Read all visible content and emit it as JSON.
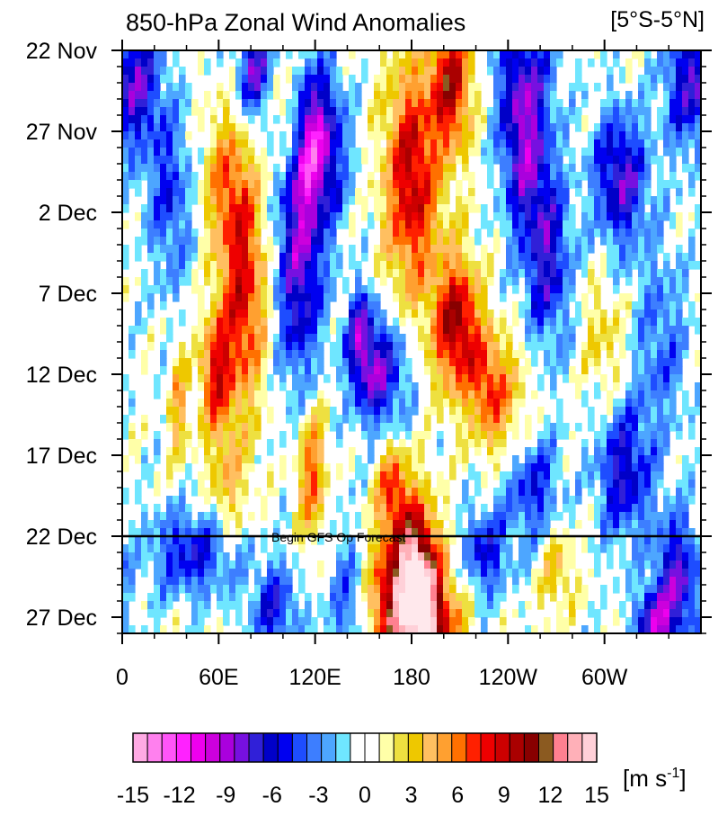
{
  "chart_data": {
    "type": "heatmap",
    "title": "850-hPa Zonal Wind Anomalies",
    "subtitle_region": "[5°S-5°N]",
    "x_ticks": [
      {
        "lon": 0,
        "label": "0"
      },
      {
        "lon": 60,
        "label": "60E"
      },
      {
        "lon": 120,
        "label": "120E"
      },
      {
        "lon": 180,
        "label": "180"
      },
      {
        "lon": 240,
        "label": "120W"
      },
      {
        "lon": 300,
        "label": "60W"
      }
    ],
    "xlim": [
      0,
      360
    ],
    "y_ticks": [
      {
        "day": 0,
        "label": "22 Nov"
      },
      {
        "day": 5,
        "label": "27 Nov"
      },
      {
        "day": 10,
        "label": "2 Dec"
      },
      {
        "day": 15,
        "label": "7 Dec"
      },
      {
        "day": 20,
        "label": "12 Dec"
      },
      {
        "day": 25,
        "label": "17 Dec"
      },
      {
        "day": 30,
        "label": "22 Dec"
      },
      {
        "day": 35,
        "label": "27 Dec"
      }
    ],
    "ylim_days": [
      0,
      36
    ],
    "forecast_line": {
      "day": 30,
      "label": "Begin GFS Op Forecast"
    },
    "colorbar": {
      "units": "[m s",
      "units_exp": "-1",
      "units_close": "]",
      "levels": [
        -16,
        -15,
        -14,
        -13,
        -12,
        -11,
        -10,
        -9,
        -8,
        -7,
        -6,
        -5,
        -4,
        -3,
        -2,
        -1,
        0,
        1,
        2,
        3,
        4,
        5,
        6,
        7,
        8,
        9,
        10,
        11,
        12,
        13,
        14,
        15,
        16
      ],
      "colors": [
        "#ffb6dd",
        "#ffaae4",
        "#ff80ee",
        "#ff55f8",
        "#ff22ff",
        "#ee00ee",
        "#cc00dd",
        "#aa00dd",
        "#7710e0",
        "#3020d8",
        "#0000c8",
        "#0000f0",
        "#1e4dff",
        "#3d7eff",
        "#4da6ff",
        "#6fe6ff",
        "#ffffff",
        "#ffffff",
        "#ffffa8",
        "#eee040",
        "#eec800",
        "#ffbf60",
        "#ffa030",
        "#ff7000",
        "#ff2000",
        "#ee0000",
        "#cc0000",
        "#aa0000",
        "#880000",
        "#8b5a20",
        "#ff8090",
        "#ffb0b8",
        "#ffd0d8",
        "#ffe8ec"
      ],
      "tick_labels": [
        {
          "value": -15,
          "label": "-15"
        },
        {
          "value": -12,
          "label": "-12"
        },
        {
          "value": -9,
          "label": "-9"
        },
        {
          "value": -6,
          "label": "-6"
        },
        {
          "value": -3,
          "label": "-3"
        },
        {
          "value": 0,
          "label": "0"
        },
        {
          "value": 3,
          "label": "3"
        },
        {
          "value": 6,
          "label": "6"
        },
        {
          "value": 9,
          "label": "9"
        },
        {
          "value": 12,
          "label": "12"
        },
        {
          "value": 15,
          "label": "15"
        }
      ]
    },
    "anomaly_features": [
      {
        "lon": 75,
        "day": 15,
        "value": 9,
        "sig_lon": 10,
        "sig_day": 5
      },
      {
        "lon": 65,
        "day": 8,
        "value": 5,
        "sig_lon": 11,
        "sig_day": 3
      },
      {
        "lon": 58,
        "day": 20,
        "value": 8,
        "sig_lon": 7,
        "sig_day": 2.5
      },
      {
        "lon": 83,
        "day": 1,
        "value": -8,
        "sig_lon": 8,
        "sig_day": 2.5
      },
      {
        "lon": 102,
        "day": 4,
        "value": 5,
        "sig_lon": 7,
        "sig_day": 2.5
      },
      {
        "lon": 35,
        "day": 22,
        "value": 5,
        "sig_lon": 4,
        "sig_day": 2.5
      },
      {
        "lon": 10,
        "day": 2,
        "value": -7,
        "sig_lon": 10,
        "sig_day": 3
      },
      {
        "lon": 30,
        "day": 9,
        "value": -5,
        "sig_lon": 10,
        "sig_day": 4
      },
      {
        "lon": 120,
        "day": 6,
        "value": -11,
        "sig_lon": 12,
        "sig_day": 3.5
      },
      {
        "lon": 110,
        "day": 14,
        "value": -8,
        "sig_lon": 10,
        "sig_day": 5
      },
      {
        "lon": 160,
        "day": 20,
        "value": -8,
        "sig_lon": 12,
        "sig_day": 2.5
      },
      {
        "lon": 148,
        "day": 17.5,
        "value": -7,
        "sig_lon": 6,
        "sig_day": 2
      },
      {
        "lon": 180,
        "day": 8,
        "value": 10,
        "sig_lon": 12,
        "sig_day": 5
      },
      {
        "lon": 205,
        "day": 2,
        "value": 10,
        "sig_lon": 9,
        "sig_day": 3
      },
      {
        "lon": 208,
        "day": 17,
        "value": 11,
        "sig_lon": 10,
        "sig_day": 3
      },
      {
        "lon": 228,
        "day": 21,
        "value": 7,
        "sig_lon": 8,
        "sig_day": 2.5
      },
      {
        "lon": 183,
        "day": 32,
        "value": 13,
        "sig_lon": 9,
        "sig_day": 3
      },
      {
        "lon": 165,
        "day": 34,
        "value": 8,
        "sig_lon": 10,
        "sig_day": 3
      },
      {
        "lon": 190,
        "day": 36,
        "value": 12,
        "sig_lon": 14,
        "sig_day": 3
      },
      {
        "lon": 168,
        "day": 27,
        "value": 7,
        "sig_lon": 7,
        "sig_day": 2
      },
      {
        "lon": 118,
        "day": 26,
        "value": 7,
        "sig_lon": 6,
        "sig_day": 3
      },
      {
        "lon": 65,
        "day": 27,
        "value": 4,
        "sig_lon": 9,
        "sig_day": 2.5
      },
      {
        "lon": 250,
        "day": 6,
        "value": -8,
        "sig_lon": 10,
        "sig_day": 4
      },
      {
        "lon": 265,
        "day": 13,
        "value": -7,
        "sig_lon": 10,
        "sig_day": 4
      },
      {
        "lon": 310,
        "day": 8,
        "value": -8,
        "sig_lon": 12,
        "sig_day": 3
      },
      {
        "lon": 312,
        "day": 26,
        "value": -7,
        "sig_lon": 12,
        "sig_day": 3
      },
      {
        "lon": 345,
        "day": 33,
        "value": -8,
        "sig_lon": 10,
        "sig_day": 3
      },
      {
        "lon": 330,
        "day": 35.5,
        "value": -8,
        "sig_lon": 8,
        "sig_day": 1.5
      },
      {
        "lon": 350,
        "day": 2,
        "value": -6,
        "sig_lon": 10,
        "sig_day": 3
      },
      {
        "lon": 255,
        "day": 27,
        "value": -6,
        "sig_lon": 12,
        "sig_day": 2.5
      },
      {
        "lon": 225,
        "day": 31,
        "value": -6,
        "sig_lon": 10,
        "sig_day": 2
      },
      {
        "lon": 45,
        "day": 31,
        "value": -6,
        "sig_lon": 20,
        "sig_day": 2
      },
      {
        "lon": 95,
        "day": 34.5,
        "value": -6,
        "sig_lon": 10,
        "sig_day": 2
      },
      {
        "lon": 140,
        "day": 34,
        "value": -4,
        "sig_lon": 10,
        "sig_day": 3
      },
      {
        "lon": 250,
        "day": 1,
        "value": -4,
        "sig_lon": 15,
        "sig_day": 3
      },
      {
        "lon": 335,
        "day": 18,
        "value": -4,
        "sig_lon": 12,
        "sig_day": 4
      },
      {
        "lon": 270,
        "day": 32,
        "value": 4,
        "sig_lon": 8,
        "sig_day": 2
      },
      {
        "lon": 300,
        "day": 18,
        "value": 3,
        "sig_lon": 10,
        "sig_day": 3
      },
      {
        "lon": 245,
        "day": 22,
        "value": 3,
        "sig_lon": 10,
        "sig_day": 3
      }
    ]
  }
}
